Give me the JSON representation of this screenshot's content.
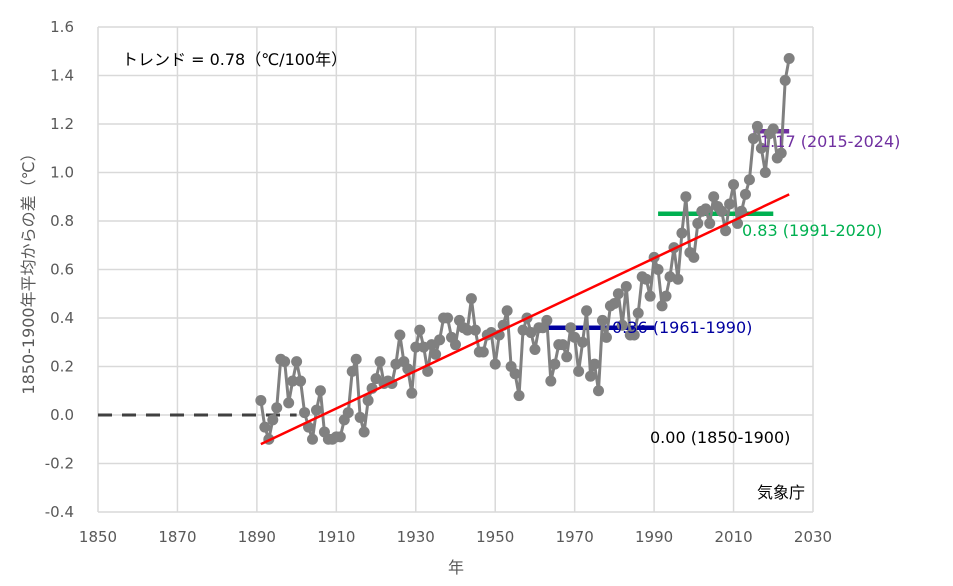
{
  "chart_data": {
    "type": "line",
    "xlabel": "年",
    "ylabel": "1850-1900年平均からの差（℃）",
    "xlim": [
      1850,
      2030
    ],
    "ylim": [
      -0.4,
      1.6
    ],
    "x_ticks": [
      "1850",
      "1870",
      "1890",
      "1910",
      "1930",
      "1950",
      "1970",
      "1990",
      "2010",
      "2030"
    ],
    "y_ticks": [
      "-0.4",
      "-0.2",
      "0.0",
      "0.2",
      "0.4",
      "0.6",
      "0.8",
      "1.0",
      "1.2",
      "1.4",
      "1.6"
    ],
    "grid": true,
    "trend_label": "トレンド = 0.78（℃/100年）",
    "source_label": "気象庁",
    "series": [
      {
        "color": "#808080",
        "x_start": 1891,
        "values": [
          0.06,
          -0.05,
          -0.1,
          -0.02,
          0.03,
          0.23,
          0.22,
          0.05,
          0.14,
          0.22,
          0.14,
          0.01,
          -0.05,
          -0.1,
          0.02,
          0.1,
          -0.07,
          -0.1,
          -0.1,
          -0.09,
          -0.09,
          -0.02,
          0.01,
          0.18,
          0.23,
          -0.01,
          -0.07,
          0.06,
          0.11,
          0.15,
          0.22,
          0.13,
          0.14,
          0.13,
          0.21,
          0.33,
          0.22,
          0.19,
          0.09,
          0.28,
          0.35,
          0.28,
          0.18,
          0.29,
          0.25,
          0.31,
          0.4,
          0.4,
          0.32,
          0.29,
          0.39,
          0.36,
          0.35,
          0.48,
          0.35,
          0.26,
          0.26,
          0.33,
          0.34,
          0.21,
          0.33,
          0.37,
          0.43,
          0.2,
          0.17,
          0.08,
          0.35,
          0.4,
          0.34,
          0.27,
          0.36,
          0.36,
          0.39,
          0.14,
          0.21,
          0.29,
          0.29,
          0.24,
          0.36,
          0.32,
          0.18,
          0.3,
          0.43,
          0.16,
          0.21,
          0.1,
          0.39,
          0.32,
          0.45,
          0.46,
          0.5,
          0.37,
          0.53,
          0.33,
          0.33,
          0.42,
          0.57,
          0.56,
          0.49,
          0.65,
          0.6,
          0.45,
          0.49,
          0.57,
          0.69,
          0.56,
          0.75,
          0.9,
          0.67,
          0.65,
          0.79,
          0.84,
          0.85,
          0.79,
          0.9,
          0.86,
          0.84,
          0.76,
          0.87,
          0.95,
          0.79,
          0.84,
          0.91,
          0.97,
          1.14,
          1.19,
          1.1,
          1.0,
          1.16,
          1.18,
          1.06,
          1.08,
          1.38,
          1.47
        ]
      }
    ],
    "trend": {
      "color": "#ff0000",
      "x": [
        1891,
        2024
      ],
      "y": [
        -0.12,
        0.91
      ]
    },
    "averages": [
      {
        "label": "0.00 (1850-1900)",
        "value": 0.0,
        "x": [
          1850,
          1900
        ],
        "color": "#404040",
        "dashed": true
      },
      {
        "label": "0.36 (1961-1990)",
        "value": 0.36,
        "x": [
          1961,
          1990
        ],
        "color": "#0000a0",
        "dashed": false
      },
      {
        "label": "0.83 (1991-2020)",
        "value": 0.83,
        "x": [
          1991,
          2020
        ],
        "color": "#00b050",
        "dashed": false
      },
      {
        "label": "1.17 (2015-2024)",
        "value": 1.17,
        "x": [
          2015,
          2024
        ],
        "color": "#7030a0",
        "dashed": false
      }
    ]
  }
}
